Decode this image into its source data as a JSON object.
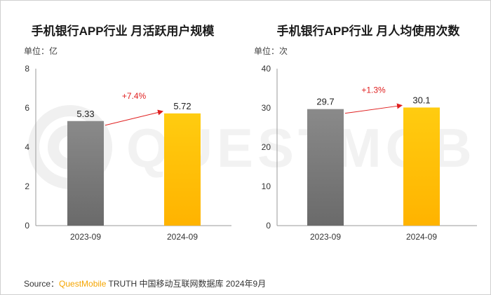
{
  "watermark": "QUESTMOBILE",
  "source": {
    "prefix": "Source：",
    "brand": "QuestMobile",
    "suffix": " TRUTH 中国移动互联网数据库 2024年9月"
  },
  "colors": {
    "bar_2023": "#7b7b7b",
    "bar_2024": "#ffc000",
    "arrow": "#e02020",
    "growth_text": "#e02020"
  },
  "chart_data": [
    {
      "type": "bar",
      "title": "手机银行APP行业 月活跃用户规模",
      "unit": "单位：亿",
      "categories": [
        "2023-09",
        "2024-09"
      ],
      "values": [
        5.33,
        5.72
      ],
      "value_labels": [
        "5.33",
        "5.72"
      ],
      "ylim": [
        0,
        8
      ],
      "yticks": [
        0,
        2,
        4,
        6,
        8
      ],
      "annotation": "+7.4%",
      "grid": false,
      "legend": "none"
    },
    {
      "type": "bar",
      "title": "手机银行APP行业 月人均使用次数",
      "unit": "单位：次",
      "categories": [
        "2023-09",
        "2024-09"
      ],
      "values": [
        29.7,
        30.1
      ],
      "value_labels": [
        "29.7",
        "30.1"
      ],
      "ylim": [
        0,
        40
      ],
      "yticks": [
        0,
        10,
        20,
        30,
        40
      ],
      "annotation": "+1.3%",
      "grid": false,
      "legend": "none"
    }
  ]
}
